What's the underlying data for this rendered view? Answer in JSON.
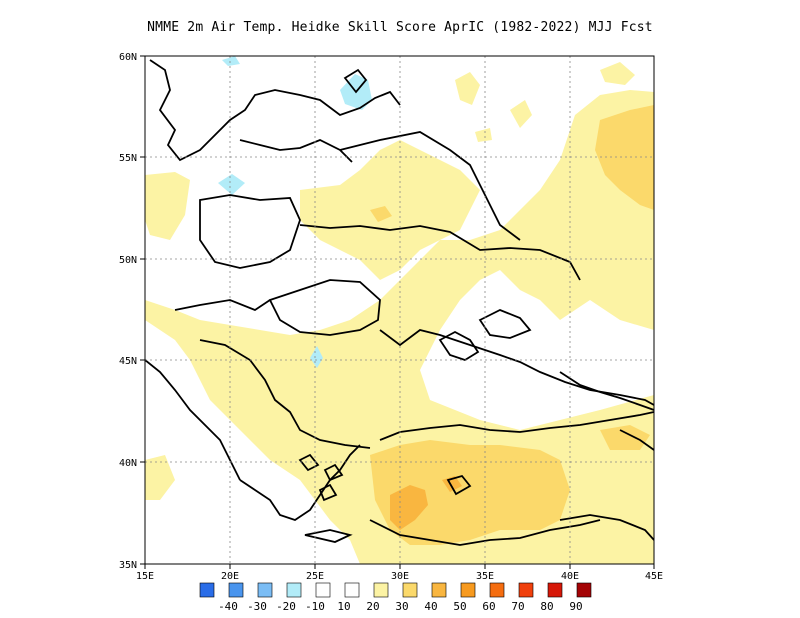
{
  "title": "NMME  2m Air Temp. Heidke Skill Score AprIC (1982-2022) MJJ Fcst",
  "map": {
    "lat_labels": [
      "60N",
      "55N",
      "50N",
      "45N",
      "40N",
      "35N"
    ],
    "lon_labels": [
      "15E",
      "20E",
      "25E",
      "30E",
      "35E",
      "40E",
      "45E"
    ],
    "extent": {
      "lon": [
        15,
        45
      ],
      "lat": [
        35,
        60
      ]
    },
    "grid": true
  },
  "colorbar": {
    "labels": [
      "-40",
      "-30",
      "-20",
      "-10",
      "10",
      "20",
      "30",
      "40",
      "50",
      "60",
      "70",
      "80",
      "90"
    ],
    "colors": [
      "#2a6de8",
      "#4a95ee",
      "#7bbdf5",
      "#b2ecf8",
      "#ffffff",
      "#fcf3a4",
      "#fbd96b",
      "#f9b640",
      "#f79a1f",
      "#f56d10",
      "#f0400c",
      "#d61708",
      "#a40305"
    ]
  },
  "fill_colors": {
    "pale_yellow": "#fcf3a4",
    "light_orange": "#fbd96b",
    "orange": "#f9b640",
    "light_blue": "#b2ecf8"
  }
}
